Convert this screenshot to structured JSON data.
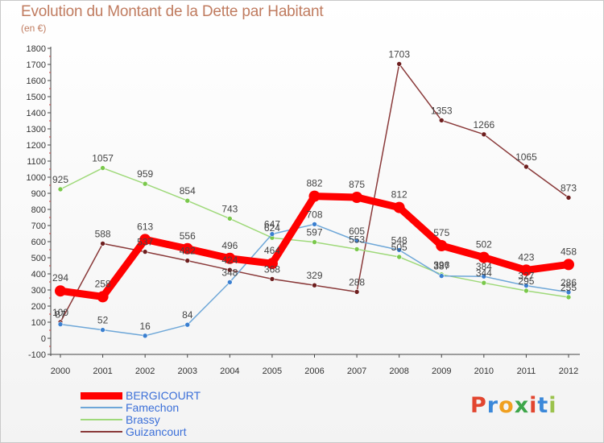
{
  "header": {
    "title": "Evolution du Montant de la Dette par Habitant",
    "subtitle": "(en €)"
  },
  "logo": {
    "text": "Proxiti",
    "letters": [
      "P",
      "r",
      "o",
      "x",
      "i",
      "t",
      "i"
    ],
    "colors": [
      "#e2452f",
      "#3b88d9",
      "#f0a020",
      "#3ea64a",
      "#e2452f",
      "#3b88d9",
      "#9bc24c"
    ]
  },
  "chart_data": {
    "type": "line",
    "title": "Evolution du Montant de la Dette par Habitant",
    "subtitle": "(en €)",
    "xlabel": "",
    "ylabel": "",
    "x": [
      "2000",
      "2001",
      "2002",
      "2003",
      "2004",
      "2005",
      "2006",
      "2007",
      "2008",
      "2009",
      "2010",
      "2011",
      "2012"
    ],
    "yticks": [
      "-100",
      "0",
      "100",
      "200",
      "300",
      "400",
      "500",
      "600",
      "700",
      "800",
      "900",
      "1000",
      "1100",
      "1200",
      "1300",
      "1400",
      "1500",
      "1600",
      "1700",
      "1800"
    ],
    "ylim": [
      -100,
      1800
    ],
    "grid": false,
    "legend_position": "bottom-left",
    "series": [
      {
        "name": "BERGICOURT",
        "color": "#ff0000",
        "marker": "#ff0000",
        "values": [
          294,
          258,
          613,
          556,
          496,
          464,
          882,
          875,
          812,
          575,
          502,
          423,
          458
        ],
        "labels": [
          "294",
          "258",
          "613",
          "556",
          "496",
          "464",
          "882",
          "875",
          "812",
          "575",
          "502",
          "423",
          "458"
        ]
      },
      {
        "name": "Famechon",
        "color": "#6ea7d8",
        "marker": "#3a7fd0",
        "values": [
          87,
          52,
          16,
          84,
          348,
          647,
          708,
          605,
          548,
          387,
          384,
          327,
          286
        ],
        "labels": [
          "87",
          "52",
          "16",
          "84",
          "348",
          "647",
          "708",
          "605",
          "548",
          "387",
          "384",
          "327",
          "286"
        ]
      },
      {
        "name": "Brassy",
        "color": "#9fd97a",
        "marker": "#7ac84c",
        "values": [
          925,
          1057,
          959,
          854,
          743,
          624,
          597,
          553,
          505,
          396,
          344,
          295,
          255
        ],
        "labels": [
          "925",
          "1057",
          "959",
          "854",
          "743",
          "624",
          "597",
          "553",
          "505",
          "396",
          "344",
          "295",
          "255"
        ]
      },
      {
        "name": "Guizancourt",
        "color": "#8a3a3a",
        "marker": "#6e1f1f",
        "values": [
          100,
          588,
          537,
          482,
          424,
          368,
          329,
          288,
          1703,
          1353,
          1266,
          1065,
          873
        ],
        "labels": [
          "100",
          "588",
          "537",
          "482",
          "424",
          "368",
          "329",
          "288",
          "1703",
          "1353",
          "1266",
          "1065",
          "873"
        ]
      }
    ]
  }
}
